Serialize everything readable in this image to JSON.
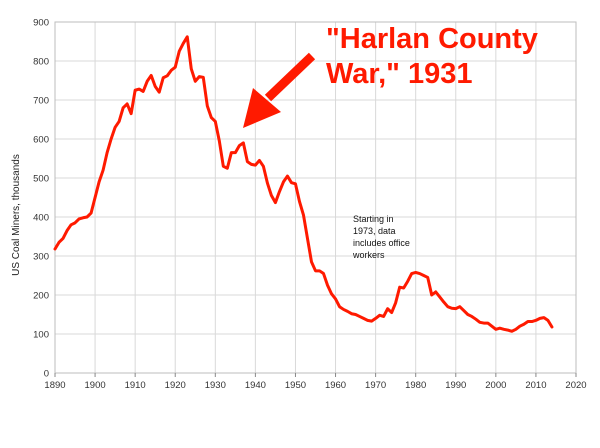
{
  "chart_data": {
    "type": "line",
    "title": "",
    "xlabel": "",
    "ylabel": "US Coal Miners, thousands",
    "xlim": [
      1890,
      2020
    ],
    "ylim": [
      0,
      900
    ],
    "x_ticks": [
      1890,
      1900,
      1910,
      1920,
      1930,
      1940,
      1950,
      1960,
      1970,
      1980,
      1990,
      2000,
      2010,
      2020
    ],
    "y_ticks": [
      0,
      100,
      200,
      300,
      400,
      500,
      600,
      700,
      800,
      900
    ],
    "grid": true,
    "line_color": "#ff1a00",
    "annotation_title": {
      "lines": [
        "\"Harlan County",
        "War,\" 1931"
      ],
      "color": "#ff1a00"
    },
    "annotation_note": {
      "lines": [
        "Starting in",
        "1973, data",
        "includes office",
        "workers"
      ]
    },
    "series": [
      {
        "name": "",
        "x": [
          1890,
          1891,
          1892,
          1893,
          1894,
          1895,
          1896,
          1897,
          1898,
          1899,
          1900,
          1901,
          1902,
          1903,
          1904,
          1905,
          1906,
          1907,
          1908,
          1909,
          1910,
          1911,
          1912,
          1913,
          1914,
          1915,
          1916,
          1917,
          1918,
          1919,
          1920,
          1921,
          1922,
          1923,
          1924,
          1925,
          1926,
          1927,
          1928,
          1929,
          1930,
          1931,
          1932,
          1933,
          1934,
          1935,
          1936,
          1937,
          1938,
          1939,
          1940,
          1941,
          1942,
          1943,
          1944,
          1945,
          1946,
          1947,
          1948,
          1949,
          1950,
          1951,
          1952,
          1953,
          1954,
          1955,
          1956,
          1957,
          1958,
          1959,
          1960,
          1961,
          1962,
          1963,
          1964,
          1965,
          1966,
          1967,
          1968,
          1969,
          1970,
          1971,
          1972,
          1973,
          1974,
          1975,
          1976,
          1977,
          1978,
          1979,
          1980,
          1981,
          1982,
          1983,
          1984,
          1985,
          1986,
          1987,
          1988,
          1989,
          1990,
          1991,
          1992,
          1993,
          1994,
          1995,
          1996,
          1997,
          1998,
          1999,
          2000,
          2001,
          2002,
          2003,
          2004,
          2005,
          2006,
          2007,
          2008,
          2009,
          2010,
          2011,
          2012,
          2013,
          2014
        ],
        "values": [
          318,
          335,
          345,
          365,
          380,
          385,
          395,
          398,
          400,
          410,
          450,
          490,
          520,
          565,
          600,
          630,
          645,
          680,
          690,
          665,
          725,
          728,
          722,
          748,
          763,
          735,
          720,
          757,
          762,
          776,
          784,
          825,
          845,
          862,
          780,
          748,
          760,
          758,
          685,
          655,
          645,
          595,
          530,
          525,
          565,
          565,
          583,
          590,
          542,
          535,
          533,
          545,
          530,
          487,
          455,
          437,
          465,
          490,
          505,
          488,
          485,
          440,
          405,
          345,
          285,
          262,
          262,
          255,
          225,
          203,
          190,
          170,
          163,
          158,
          152,
          150,
          145,
          140,
          135,
          133,
          140,
          148,
          145,
          165,
          155,
          180,
          220,
          218,
          235,
          255,
          258,
          255,
          250,
          245,
          200,
          208,
          195,
          182,
          170,
          166,
          165,
          170,
          160,
          150,
          145,
          138,
          130,
          128,
          128,
          120,
          112,
          115,
          112,
          110,
          107,
          112,
          120,
          125,
          132,
          132,
          135,
          140,
          142,
          135,
          118
        ]
      }
    ]
  }
}
